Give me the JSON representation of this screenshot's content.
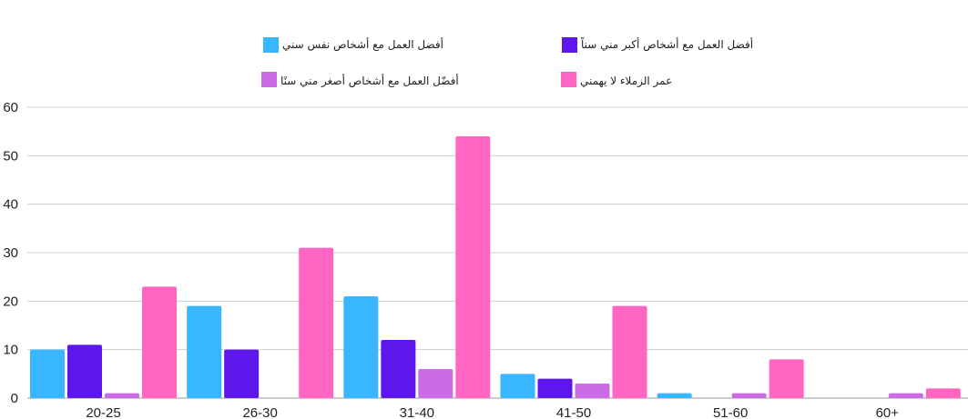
{
  "chart_data": {
    "type": "bar",
    "title": "",
    "xlabel": "",
    "ylabel": "",
    "categories": [
      "20-25",
      "26-30",
      "31-40",
      "41-50",
      "51-60",
      "60+"
    ],
    "ylim": [
      0,
      60
    ],
    "yticks": [
      0,
      10,
      20,
      30,
      40,
      50,
      60
    ],
    "ytick_labels": [
      "0",
      "10",
      "20",
      "30",
      "40",
      "50",
      "60"
    ],
    "grid": true,
    "legend_position": "top",
    "series": [
      {
        "name": "أفضل العمل مع أشخاص نفس سني",
        "color": "#38b6ff",
        "values": [
          10,
          19,
          21,
          5,
          1,
          0
        ]
      },
      {
        "name": "أفضل العمل مع أشخاص أكبر مني سناً",
        "color": "#5e17eb",
        "values": [
          11,
          10,
          12,
          4,
          0,
          0
        ]
      },
      {
        "name": "أفضّل العمل مع أشخاص أصغر مني سنًا",
        "color": "#cb6ce6",
        "values": [
          1,
          0,
          6,
          3,
          1,
          1
        ]
      },
      {
        "name": "عمر الزملاء لا يهمني",
        "color": "#ff66c4",
        "values": [
          23,
          31,
          54,
          19,
          8,
          2
        ]
      }
    ]
  }
}
